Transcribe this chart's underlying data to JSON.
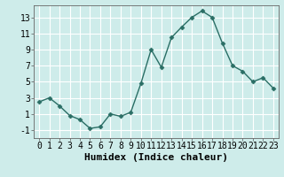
{
  "x": [
    0,
    1,
    2,
    3,
    4,
    5,
    6,
    7,
    8,
    9,
    10,
    11,
    12,
    13,
    14,
    15,
    16,
    17,
    18,
    19,
    20,
    21,
    22,
    23
  ],
  "y": [
    2.5,
    3.0,
    2.0,
    0.8,
    0.3,
    -0.8,
    -0.6,
    1.0,
    0.7,
    1.2,
    4.8,
    9.0,
    6.8,
    10.5,
    11.8,
    13.0,
    13.8,
    13.0,
    9.8,
    7.0,
    6.3,
    5.0,
    5.5,
    4.2
  ],
  "line_color": "#2a6e65",
  "marker": "D",
  "marker_size": 2.5,
  "bg_color": "#ceecea",
  "grid_color": "#ffffff",
  "grid_minor_color": "#e8f5f4",
  "xlabel": "Humidex (Indice chaleur)",
  "xlabel_fontsize": 8,
  "tick_fontsize": 7,
  "xlim": [
    -0.5,
    23.5
  ],
  "ylim": [
    -2.0,
    14.5
  ],
  "yticks": [
    -1,
    1,
    3,
    5,
    7,
    9,
    11,
    13
  ],
  "xticks": [
    0,
    1,
    2,
    3,
    4,
    5,
    6,
    7,
    8,
    9,
    10,
    11,
    12,
    13,
    14,
    15,
    16,
    17,
    18,
    19,
    20,
    21,
    22,
    23
  ],
  "line_width": 1.0
}
